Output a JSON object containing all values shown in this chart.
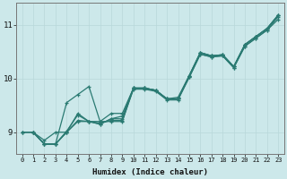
{
  "title": "",
  "xlabel": "Humidex (Indice chaleur)",
  "ylabel": "",
  "xlim": [
    -0.5,
    23.5
  ],
  "ylim": [
    8.6,
    11.4
  ],
  "yticks": [
    9,
    10,
    11
  ],
  "xticks": [
    0,
    1,
    2,
    3,
    4,
    5,
    6,
    7,
    8,
    9,
    10,
    11,
    12,
    13,
    14,
    15,
    16,
    17,
    18,
    19,
    20,
    21,
    22,
    23
  ],
  "bg_color": "#cce8ea",
  "grid_color": "#b8d8da",
  "line_color": "#2a7a72",
  "lines": [
    {
      "x": [
        0,
        1,
        2,
        3,
        4,
        5,
        6,
        7,
        8,
        9,
        10,
        11,
        12,
        13,
        14,
        15,
        16,
        17,
        18,
        19,
        20,
        21,
        22,
        23
      ],
      "y": [
        9.0,
        9.0,
        8.85,
        9.0,
        9.0,
        9.35,
        9.2,
        9.2,
        9.35,
        9.35,
        9.82,
        9.82,
        9.78,
        9.62,
        9.62,
        10.05,
        10.48,
        10.42,
        10.44,
        10.22,
        10.63,
        10.78,
        10.93,
        11.18
      ]
    },
    {
      "x": [
        1,
        2,
        3,
        4,
        5,
        6,
        7,
        8,
        9,
        10,
        11,
        12,
        13,
        14,
        15,
        16,
        17,
        18,
        19,
        20,
        21,
        22,
        23
      ],
      "y": [
        9.0,
        8.78,
        8.78,
        9.55,
        9.7,
        9.85,
        9.2,
        9.2,
        9.2,
        9.82,
        9.82,
        9.78,
        9.62,
        9.62,
        10.05,
        10.48,
        10.42,
        10.44,
        10.22,
        10.63,
        10.78,
        10.93,
        11.18
      ]
    },
    {
      "x": [
        0,
        1,
        2,
        3,
        4,
        5,
        6,
        7,
        8,
        9,
        10,
        11,
        12,
        13,
        14,
        15,
        16,
        17,
        18,
        19,
        20,
        21,
        22,
        23
      ],
      "y": [
        9.0,
        9.0,
        8.78,
        8.78,
        9.0,
        9.2,
        9.2,
        9.15,
        9.25,
        9.25,
        9.82,
        9.82,
        9.78,
        9.62,
        9.62,
        10.02,
        10.45,
        10.4,
        10.42,
        10.2,
        10.6,
        10.75,
        10.9,
        11.15
      ]
    },
    {
      "x": [
        1,
        2,
        3,
        4,
        5,
        6,
        7,
        8,
        9,
        10,
        11,
        12,
        13,
        14,
        15,
        16,
        17,
        18,
        19,
        20,
        21,
        22,
        23
      ],
      "y": [
        9.0,
        8.78,
        8.78,
        9.0,
        9.22,
        9.2,
        9.15,
        9.25,
        9.3,
        9.82,
        9.82,
        9.78,
        9.62,
        9.65,
        10.05,
        10.48,
        10.42,
        10.44,
        10.22,
        10.63,
        10.78,
        10.93,
        11.18
      ]
    },
    {
      "x": [
        0,
        1,
        2,
        3,
        4,
        5,
        6,
        7,
        8,
        9,
        10,
        11,
        12,
        13,
        14,
        15,
        16,
        17,
        18,
        19,
        20,
        21,
        22,
        23
      ],
      "y": [
        9.0,
        9.0,
        8.78,
        8.78,
        9.02,
        9.32,
        9.2,
        9.17,
        9.22,
        9.22,
        9.8,
        9.8,
        9.76,
        9.6,
        9.6,
        10.02,
        10.45,
        10.4,
        10.42,
        10.2,
        10.6,
        10.75,
        10.9,
        11.1
      ]
    }
  ]
}
